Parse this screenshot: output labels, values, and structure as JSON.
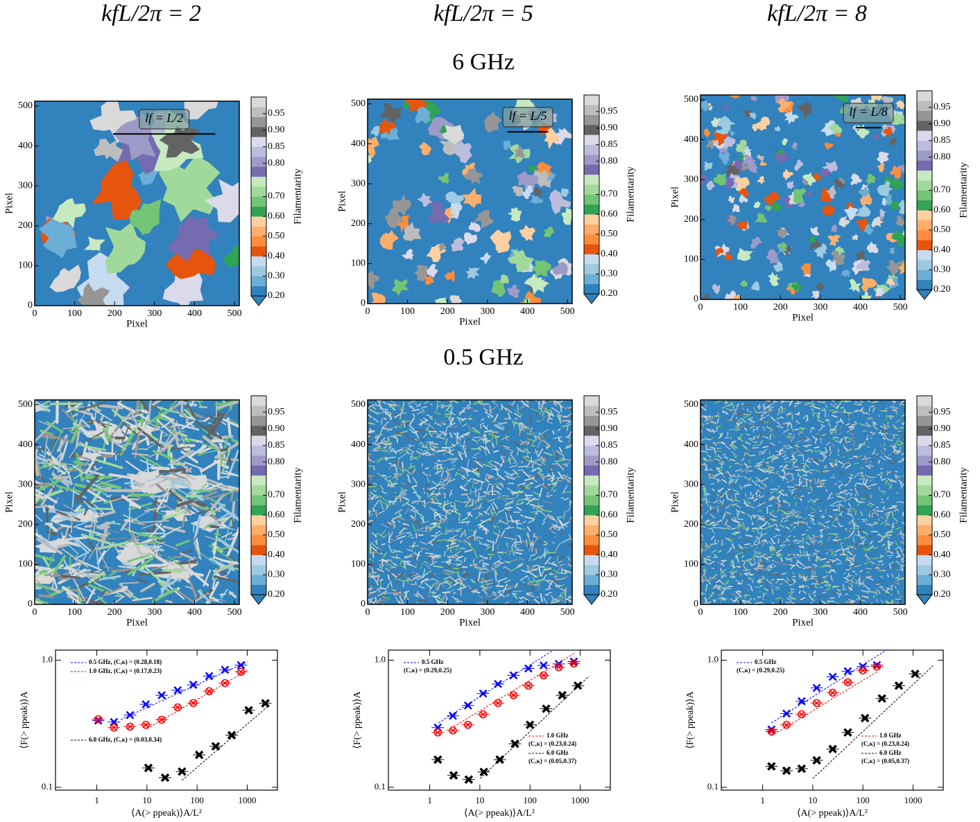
{
  "column_titles": [
    "kfL/2π = 2",
    "kfL/2π = 5",
    "kfL/2π = 8"
  ],
  "row_titles": [
    "6 GHz",
    "0.5 GHz"
  ],
  "colorbar": {
    "label": "Filamentarity",
    "boundaries": [
      0.2,
      0.25,
      0.3,
      0.35,
      0.4,
      0.45,
      0.5,
      0.55,
      0.6,
      0.65,
      0.7,
      0.73,
      0.76,
      0.79,
      0.82,
      0.85,
      0.88,
      0.91,
      0.94,
      0.97,
      1.0
    ],
    "colors": [
      "#3182bd",
      "#6baed6",
      "#9ecae1",
      "#c6dbef",
      "#e6550d",
      "#fd8d3c",
      "#fdae6b",
      "#fdd0a2",
      "#31a354",
      "#74c476",
      "#a1d99b",
      "#c7e9c0",
      "#756bb1",
      "#9e9ac8",
      "#bcbddc",
      "#dadaeb",
      "#636363",
      "#969696",
      "#bdbdbd",
      "#d9d9d9"
    ],
    "ticks": [
      {
        "value": 0.2,
        "label": "0.20"
      },
      {
        "value": 0.3,
        "label": "0.30"
      },
      {
        "value": 0.4,
        "label": "0.40"
      },
      {
        "value": 0.5,
        "label": "0.50"
      },
      {
        "value": 0.6,
        "label": "0.60"
      },
      {
        "value": 0.7,
        "label": "0.70"
      },
      {
        "value": 0.8,
        "label": "0.80"
      },
      0.85,
      {
        "value": 0.9,
        "label": "0.90"
      },
      0.95
    ]
  },
  "maps": [
    {
      "xlabel": "Pixel",
      "ylabel": "Pixel",
      "xlim": [
        0,
        512
      ],
      "ylim": [
        0,
        512
      ],
      "xticks": [
        0,
        100,
        200,
        300,
        400,
        500
      ],
      "yticks": [
        0,
        100,
        200,
        300,
        400,
        500
      ],
      "annotation": "lf = L/2",
      "scale_bar": {
        "x": [
          196,
          452
        ],
        "y": 430
      }
    },
    {
      "xlabel": "Pixel",
      "ylabel": "Pixel",
      "xlim": [
        0,
        512
      ],
      "ylim": [
        0,
        512
      ],
      "xticks": [
        0,
        100,
        200,
        300,
        400,
        500
      ],
      "yticks": [
        0,
        100,
        200,
        300,
        400,
        500
      ],
      "annotation": "lf = L/5",
      "scale_bar": {
        "x": [
          350,
          452
        ],
        "y": 430
      }
    },
    {
      "xlabel": "Pixel",
      "ylabel": "Pixel",
      "xlim": [
        0,
        512
      ],
      "ylim": [
        0,
        512
      ],
      "xticks": [
        0,
        100,
        200,
        300,
        400,
        500
      ],
      "yticks": [
        0,
        100,
        200,
        300,
        400,
        500
      ],
      "annotation": "lf = L/8",
      "scale_bar": {
        "x": [
          388,
          452
        ],
        "y": 430
      }
    },
    {
      "xlabel": "Pixel",
      "ylabel": "Pixel",
      "xlim": [
        0,
        512
      ],
      "ylim": [
        0,
        512
      ],
      "xticks": [
        0,
        100,
        200,
        300,
        400,
        500
      ],
      "yticks": [
        0,
        100,
        200,
        300,
        400,
        500
      ]
    },
    {
      "xlabel": "Pixel",
      "ylabel": "Pixel",
      "xlim": [
        0,
        512
      ],
      "ylim": [
        0,
        512
      ],
      "xticks": [
        0,
        100,
        200,
        300,
        400,
        500
      ],
      "yticks": [
        0,
        100,
        200,
        300,
        400,
        500
      ]
    },
    {
      "xlabel": "Pixel",
      "ylabel": "Pixel",
      "xlim": [
        0,
        512
      ],
      "ylim": [
        0,
        512
      ],
      "xticks": [
        0,
        100,
        200,
        300,
        400,
        500
      ],
      "yticks": [
        0,
        100,
        200,
        300,
        400,
        500
      ]
    }
  ],
  "chart_data": [
    {
      "type": "scatter",
      "xlabel": "⟨A(> ppeak)⟩A/L²",
      "ylabel": "⟨F(> ppeak)⟩A",
      "log_x": true,
      "log_y": true,
      "xlim": [
        0.15,
        4000
      ],
      "ylim": [
        0.095,
        1.2
      ],
      "xticks": [
        1,
        10,
        100,
        1000
      ],
      "yticks": [
        0.1,
        {
          "value": 1,
          "label": "1.0"
        }
      ],
      "series": [
        {
          "name": "0.5 GHz, (C,κ) = (0.28,0.18)",
          "color": "#0000ff",
          "marker": "x",
          "legend_loc": "upper left",
          "x": [
            1.07,
            2.2,
            4.6,
            9.5,
            19.7,
            41,
            84,
            174,
            360,
            750
          ],
          "values": [
            0.335,
            0.326,
            0.37,
            0.45,
            0.53,
            0.58,
            0.64,
            0.75,
            0.84,
            0.915
          ],
          "fit": {
            "C": 0.28,
            "kappa": 0.18,
            "xrange": [
              3,
              1000
            ]
          }
        },
        {
          "name": "1.0 GHz, (C,κ) = (0.17,0.23)",
          "color": "#ff0000",
          "marker": "circle-x",
          "legend_loc": "upper left",
          "x": [
            1.07,
            2.2,
            4.6,
            9.5,
            19.7,
            41,
            84,
            174,
            360,
            750
          ],
          "values": [
            0.343,
            0.295,
            0.3,
            0.31,
            0.34,
            0.425,
            0.46,
            0.57,
            0.66,
            0.81
          ],
          "fit": {
            "C": 0.17,
            "kappa": 0.23,
            "xrange": [
              10,
              1000
            ]
          }
        },
        {
          "name": "6.0 GHz, (C,κ) = (0.03,0.34)",
          "color": "#000000",
          "marker": "filled-x",
          "legend_loc": "lower left",
          "x": [
            10.7,
            23,
            50,
            110,
            235,
            490,
            1070,
            2300
          ],
          "values": [
            0.142,
            0.119,
            0.133,
            0.18,
            0.21,
            0.257,
            0.404,
            0.458
          ],
          "fit": {
            "C": 0.03,
            "kappa": 0.34,
            "xrange": [
              50,
              2500
            ]
          }
        }
      ]
    },
    {
      "type": "scatter",
      "xlabel": "⟨A(> ppeak)⟩A/L²",
      "ylabel": "⟨F(> ppeak)⟩A",
      "log_x": true,
      "log_y": true,
      "xlim": [
        0.15,
        4000
      ],
      "ylim": [
        0.095,
        1.2
      ],
      "xticks": [
        1,
        10,
        100,
        1000
      ],
      "yticks": [
        0.1,
        {
          "value": 1,
          "label": "1.0"
        }
      ],
      "series": [
        {
          "name": "0.5 GHz",
          "fit_label": "(C,κ) = (0.29,0.25)",
          "color": "#0000ff",
          "marker": "x",
          "legend_loc": "upper left",
          "x": [
            1.45,
            2.9,
            5.8,
            11.6,
            23,
            47,
            93,
            187,
            375,
            750
          ],
          "values": [
            0.295,
            0.365,
            0.44,
            0.547,
            0.65,
            0.76,
            0.86,
            0.91,
            0.935,
            0.975
          ],
          "fit": {
            "C": 0.29,
            "kappa": 0.25,
            "xrange": [
              1.5,
              1000
            ]
          }
        },
        {
          "name": "1.0 GHz",
          "fit_label": "(C,κ) = (0.23,0.24)",
          "color": "#ff0000",
          "marker": "circle-x",
          "legend_loc": "lower right",
          "x": [
            1.45,
            2.9,
            5.8,
            11.6,
            23,
            47,
            93,
            187,
            375,
            750
          ],
          "values": [
            0.27,
            0.28,
            0.31,
            0.375,
            0.46,
            0.53,
            0.63,
            0.76,
            0.88,
            0.94
          ],
          "fit": {
            "C": 0.23,
            "kappa": 0.24,
            "xrange": [
              3,
              800
            ]
          }
        },
        {
          "name": "6.0 GHz",
          "fit_label": "(C,κ) = (0.05,0.37)",
          "color": "#000000",
          "marker": "filled-x",
          "legend_loc": "lower right",
          "x": [
            1.45,
            3,
            6,
            12,
            25,
            50,
            100,
            210,
            440,
            900
          ],
          "values": [
            0.165,
            0.124,
            0.115,
            0.132,
            0.165,
            0.22,
            0.31,
            0.415,
            0.53,
            0.63
          ],
          "fit": {
            "C": 0.05,
            "kappa": 0.37,
            "xrange": [
              10,
              1500
            ]
          }
        }
      ]
    },
    {
      "type": "scatter",
      "xlabel": "⟨A(> ppeak)⟩A/L²",
      "ylabel": "⟨F(> ppeak)⟩A",
      "log_x": true,
      "log_y": true,
      "xlim": [
        0.15,
        4000
      ],
      "ylim": [
        0.095,
        1.2
      ],
      "xticks": [
        1,
        10,
        100,
        1000
      ],
      "yticks": [
        0.1,
        {
          "value": 1,
          "label": "1.0"
        }
      ],
      "series": [
        {
          "name": "0.5 GHz",
          "fit_label": "(C,κ) = (0.29,0.25)",
          "color": "#0000ff",
          "marker": "x",
          "legend_loc": "upper left",
          "x": [
            1.5,
            3,
            6,
            12,
            25,
            50,
            100,
            190
          ],
          "values": [
            0.285,
            0.38,
            0.475,
            0.605,
            0.74,
            0.82,
            0.89,
            0.915
          ],
          "fit": {
            "C": 0.29,
            "kappa": 0.25,
            "xrange": [
              1.5,
              400
            ]
          }
        },
        {
          "name": "1.0 GHz",
          "fit_label": "(C,κ) = (0.23,0.24)",
          "color": "#ff0000",
          "marker": "circle-x",
          "legend_loc": "lower right",
          "x": [
            1.5,
            3,
            6,
            12,
            25,
            50,
            100,
            190
          ],
          "values": [
            0.275,
            0.31,
            0.375,
            0.46,
            0.555,
            0.67,
            0.83,
            0.89
          ],
          "fit": {
            "C": 0.23,
            "kappa": 0.24,
            "xrange": [
              1.5,
              200
            ]
          }
        },
        {
          "name": "6.0 GHz",
          "fit_label": "(C,κ) = (0.05,0.37)",
          "color": "#000000",
          "marker": "filled-x",
          "legend_loc": "lower right",
          "x": [
            1.5,
            3,
            6,
            12,
            25,
            50,
            110,
            240,
            520,
            1100
          ],
          "values": [
            0.146,
            0.135,
            0.14,
            0.163,
            0.2,
            0.27,
            0.35,
            0.5,
            0.63,
            0.78
          ],
          "fit": {
            "C": 0.05,
            "kappa": 0.37,
            "xrange": [
              10,
              2500
            ]
          }
        }
      ]
    }
  ]
}
